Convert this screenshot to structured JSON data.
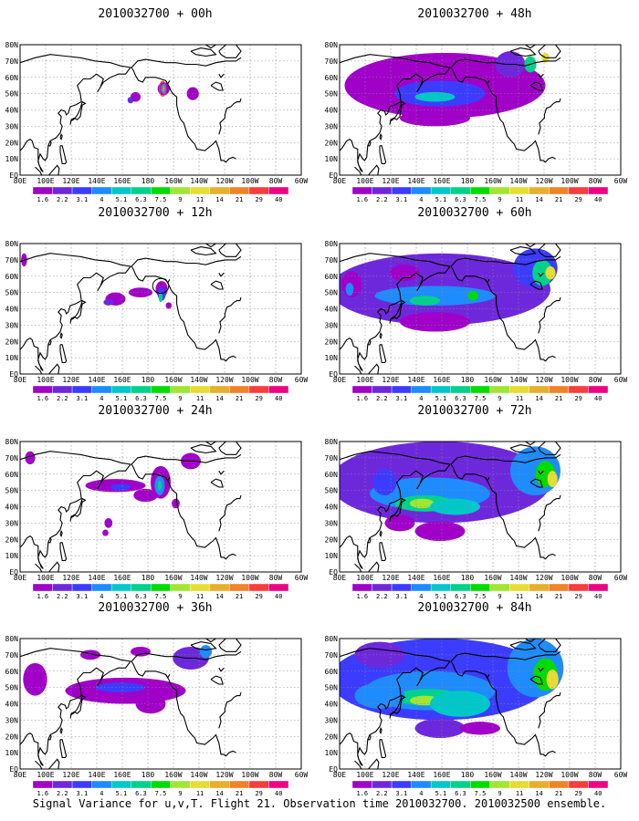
{
  "figure": {
    "caption": "Signal Variance for u,v,T. Flight 21. Observation time 2010032700. 2010032500 ensemble."
  },
  "colorbar": {
    "labels": [
      "1.6",
      "2.2",
      "3.1",
      "4",
      "5.1",
      "6.3",
      "7.5",
      "9",
      "11",
      "14",
      "21",
      "29",
      "40"
    ],
    "colors": [
      "#a000c8",
      "#6e28dc",
      "#3c3cff",
      "#1e8cff",
      "#00c8c8",
      "#00d28c",
      "#00dc00",
      "#a0e632",
      "#e6dc32",
      "#e6af2d",
      "#f08228",
      "#fa3c3c",
      "#f00082"
    ]
  },
  "axes": {
    "x_ticks": [
      "80E",
      "100E",
      "120E",
      "140E",
      "160E",
      "180",
      "160W",
      "140W",
      "120W",
      "100W",
      "80W",
      "60W"
    ],
    "y_ticks": [
      "80N",
      "70N",
      "60N",
      "50N",
      "40N",
      "30N",
      "20N",
      "10N",
      "EQ"
    ]
  },
  "chart_data": [
    {
      "type": "heatmap",
      "title": "2010032700 + 00h",
      "lead_hours": 0,
      "max_level": "21",
      "regions": [
        "Gulf of Alaska near 145W 50N"
      ]
    },
    {
      "type": "heatmap",
      "title": "2010032700 + 12h",
      "lead_hours": 12,
      "max_level": "9",
      "regions": [
        "North Pacific 165E-130W, 35N-55N"
      ]
    },
    {
      "type": "heatmap",
      "title": "2010032700 + 24h",
      "lead_hours": 24,
      "max_level": "9",
      "regions": [
        "North Pacific band 140E-120W",
        "Canada 70N"
      ]
    },
    {
      "type": "heatmap",
      "title": "2010032700 + 36h",
      "lead_hours": 36,
      "max_level": "7.5",
      "regions": [
        "Pacific band",
        "Canada/Hudson Bay"
      ]
    },
    {
      "type": "heatmap",
      "title": "2010032700 + 48h",
      "lead_hours": 48,
      "max_level": "9",
      "regions": [
        "Pacific band 40N",
        "Canada 60N-80N"
      ]
    },
    {
      "type": "heatmap",
      "title": "2010032700 + 60h",
      "lead_hours": 60,
      "max_level": "14",
      "regions": [
        "Pacific 35N-50N",
        "Canada/Greenland"
      ]
    },
    {
      "type": "heatmap",
      "title": "2010032700 + 72h",
      "lead_hours": 72,
      "max_level": "14",
      "regions": [
        "Pacific jet 140E-140W",
        "Canada"
      ]
    },
    {
      "type": "heatmap",
      "title": "2010032700 + 84h",
      "lead_hours": 84,
      "max_level": "14",
      "regions": [
        "Pacific jet 140E-130W",
        "North America 100W-60W"
      ]
    }
  ]
}
